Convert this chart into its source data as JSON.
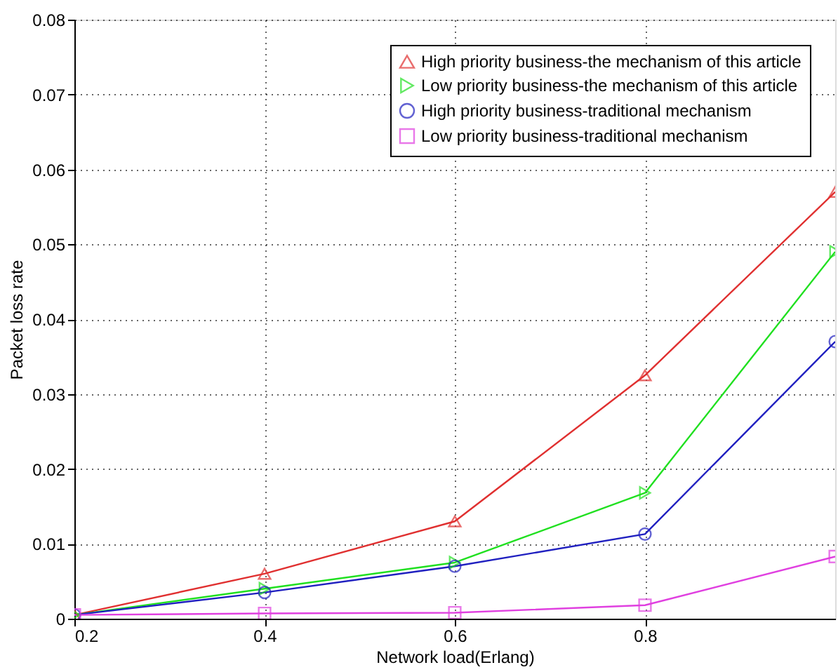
{
  "chart_data": {
    "type": "line",
    "xlabel": "Network load(Erlang)",
    "ylabel": "Packet loss rate",
    "x": [
      0.2,
      0.4,
      0.6,
      0.8,
      1.0
    ],
    "series": [
      {
        "name": "High priority business-the mechanism of this article",
        "color": "#e03030",
        "marker": "triangle",
        "values": [
          0.0005,
          0.006,
          0.013,
          0.0325,
          0.057
        ]
      },
      {
        "name": "Low priority business-the mechanism of this article",
        "color": "#20e020",
        "marker": "triangle-right",
        "values": [
          0.0005,
          0.004,
          0.0075,
          0.0168,
          0.049
        ]
      },
      {
        "name": "High priority business-traditional mechanism",
        "color": "#2020c0",
        "marker": "circle",
        "values": [
          0.0005,
          0.0035,
          0.007,
          0.0113,
          0.037
        ]
      },
      {
        "name": "Low priority business-traditional mechanism",
        "color": "#e040e0",
        "marker": "square",
        "values": [
          0.0005,
          0.0007,
          0.0008,
          0.0018,
          0.0083
        ]
      }
    ],
    "xlim": [
      0.2,
      1.0
    ],
    "xticks": [
      0.2,
      0.4,
      0.6,
      0.8
    ],
    "ylim": [
      0,
      0.08
    ],
    "yticks": [
      0,
      0.01,
      0.02,
      0.03,
      0.04,
      0.05,
      0.06,
      0.07,
      0.08
    ],
    "grid": true,
    "legend": "top right",
    "line_style": "solid"
  }
}
